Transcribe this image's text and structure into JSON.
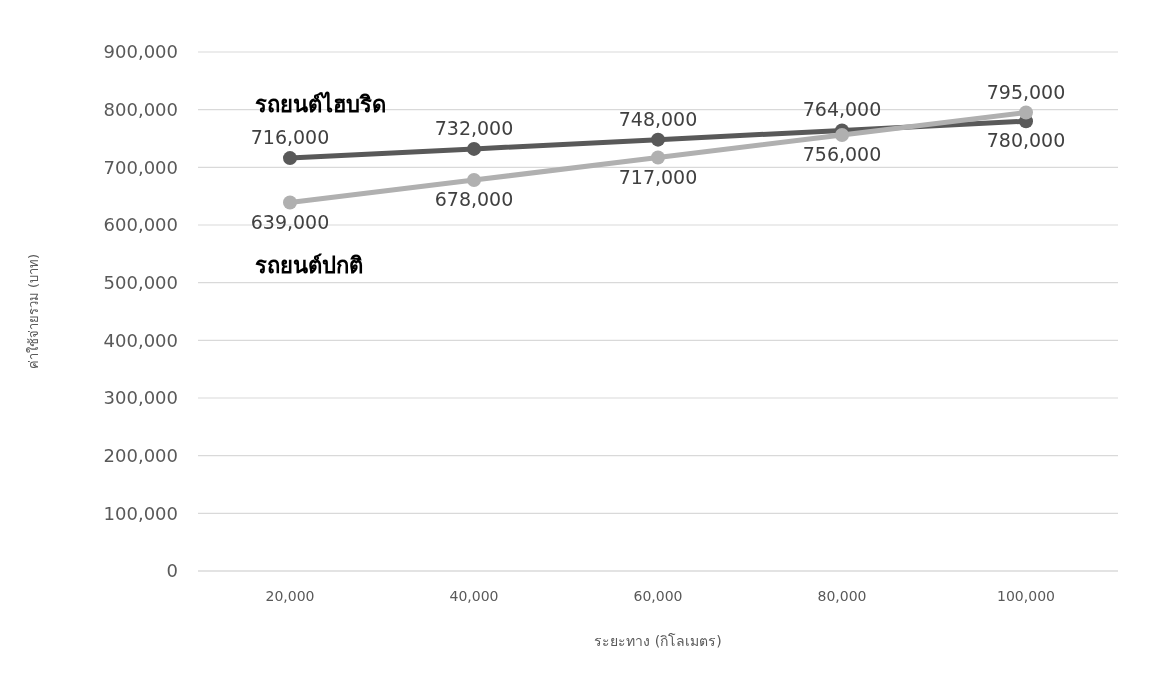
{
  "chart_data": {
    "type": "line",
    "xlabel": "ระยะทาง (กิโลเมตร)",
    "ylabel": "ค่าใช้จ่ายรวม (บาท)",
    "categories": [
      "20,000",
      "40,000",
      "60,000",
      "80,000",
      "100,000"
    ],
    "series": [
      {
        "name": "รถยนต์ไฮบริด",
        "color": "#595959",
        "values": [
          716000,
          732000,
          748000,
          764000,
          780000
        ],
        "value_labels": [
          "716,000",
          "732,000",
          "748,000",
          "764,000",
          "780,000"
        ]
      },
      {
        "name": "รถยนต์ปกติ",
        "color": "#b0b0b0",
        "values": [
          639000,
          678000,
          717000,
          756000,
          795000
        ],
        "value_labels": [
          "639,000",
          "678,000",
          "717,000",
          "756,000",
          "795,000"
        ]
      }
    ],
    "ylim": [
      0,
      900000
    ],
    "yticks": [
      {
        "value": 0,
        "label": "0"
      },
      {
        "value": 100000,
        "label": "100,000"
      },
      {
        "value": 200000,
        "label": "200,000"
      },
      {
        "value": 300000,
        "label": "300,000"
      },
      {
        "value": 400000,
        "label": "400,000"
      },
      {
        "value": 500000,
        "label": "500,000"
      },
      {
        "value": 600000,
        "label": "600,000"
      },
      {
        "value": 700000,
        "label": "700,000"
      },
      {
        "value": 800000,
        "label": "800,000"
      },
      {
        "value": 900000,
        "label": "900,000"
      }
    ],
    "grid": "y",
    "marker": "circle",
    "line_style": "solid"
  }
}
